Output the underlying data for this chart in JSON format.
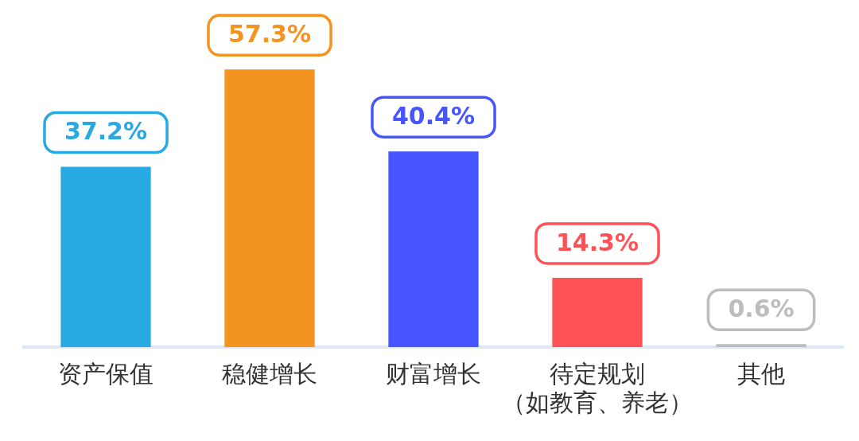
{
  "chart_data": {
    "type": "bar",
    "categories": [
      "资产保值",
      "稳健增长",
      "财富增长",
      "待定规划（如教育、养老）",
      "其他"
    ],
    "values": [
      37.2,
      57.3,
      40.4,
      14.3,
      0.6
    ],
    "colors": [
      "#29a9e1",
      "#f39320",
      "#4655ff",
      "#ff5257",
      "#bdbdbd"
    ],
    "value_labels": [
      "37.2%",
      "57.3%",
      "40.4%",
      "14.3%",
      "0.6%"
    ],
    "grid": false,
    "legend": false
  }
}
